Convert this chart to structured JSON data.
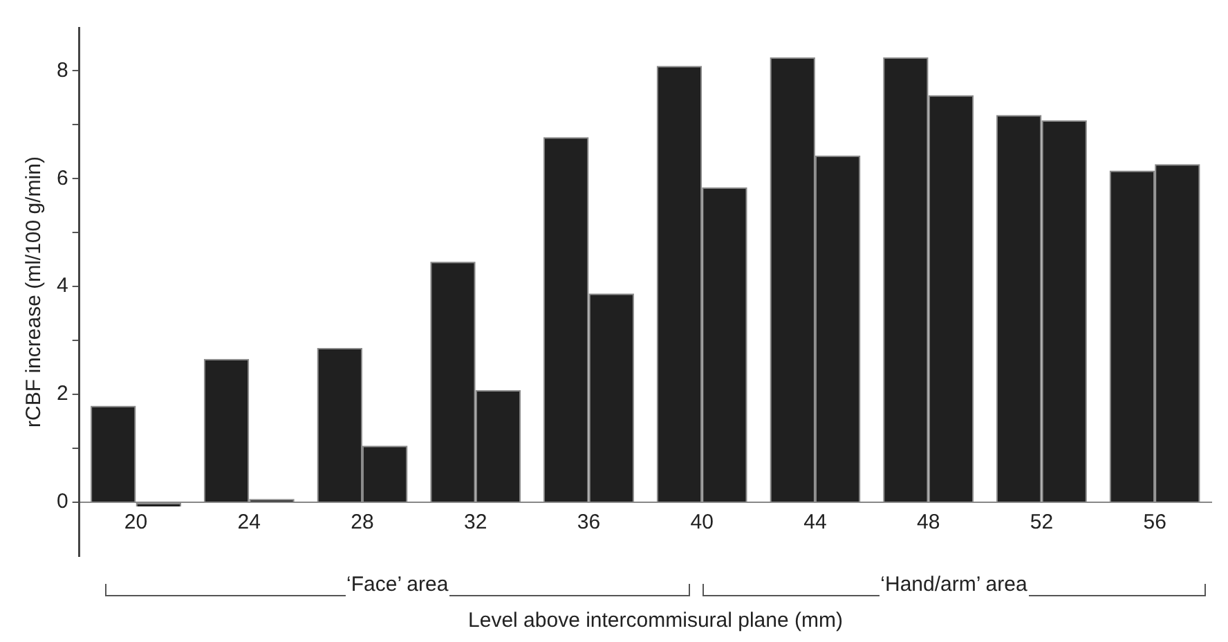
{
  "chart_data": {
    "type": "bar",
    "ylabel": "rCBF increase (ml/100 g/min)",
    "xlabel": "Level above intercommisural plane (mm)",
    "categories": [
      "20",
      "24",
      "28",
      "32",
      "36",
      "40",
      "44",
      "48",
      "52",
      "56"
    ],
    "series": [
      {
        "color": "#202020",
        "values": [
          1.79,
          2.66,
          2.86,
          4.46,
          6.77,
          8.09,
          8.25,
          8.25,
          7.18,
          6.15
        ]
      },
      {
        "color": "#202020",
        "values": [
          -0.08,
          0.06,
          1.05,
          2.08,
          3.87,
          5.84,
          6.43,
          7.55,
          7.08,
          6.27
        ]
      }
    ],
    "ylim": [
      -1,
      8.8
    ],
    "yticks": [
      0,
      {
        "value": 1,
        "label": null
      },
      2,
      {
        "value": 3,
        "label": null
      },
      4,
      {
        "value": 5,
        "label": null
      },
      6,
      {
        "value": 7,
        "label": null
      },
      8
    ],
    "annotations": [
      "‘Face’ area",
      "‘Hand/arm’ area"
    ],
    "grid": false,
    "legend": false
  }
}
